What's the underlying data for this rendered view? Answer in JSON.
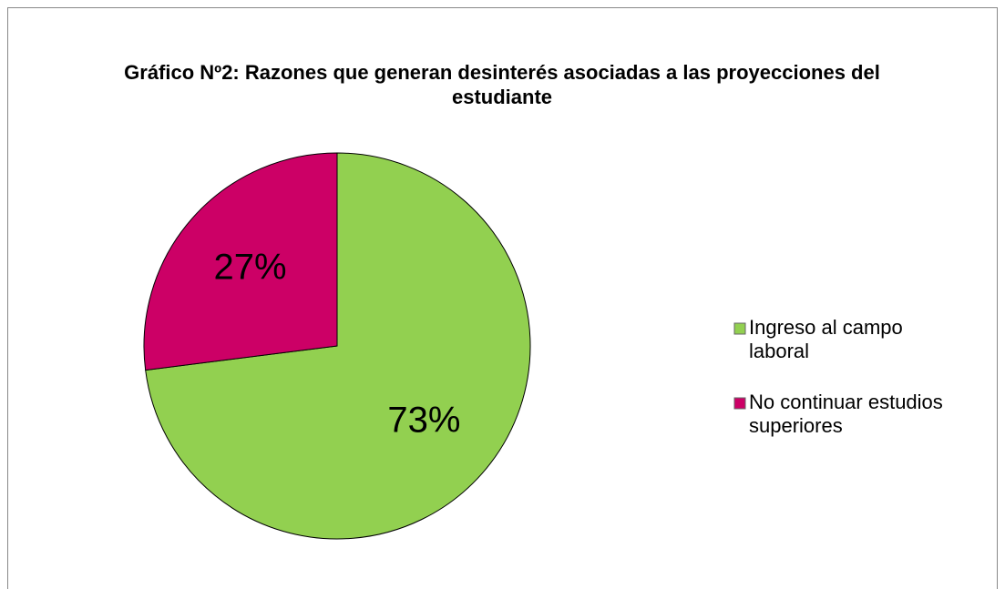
{
  "chart_data": {
    "type": "pie",
    "title": "Gráfico Nº2: Razones que generan desinterés asociadas a las proyecciones del estudiante",
    "categories": [
      "Ingreso al campo laboral",
      "No continuar estudios superiores"
    ],
    "values": [
      73,
      27
    ],
    "value_labels": [
      "73%",
      "27%"
    ],
    "colors": [
      "#92d050",
      "#cc0066"
    ],
    "legend": "right"
  }
}
